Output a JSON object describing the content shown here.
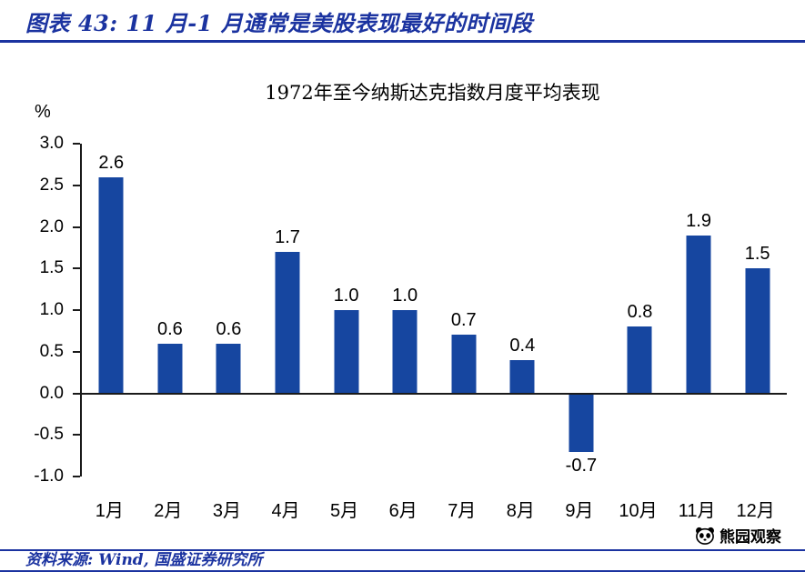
{
  "header": {
    "title": "图表 43:  11 月-1 月通常是美股表现最好的时间段"
  },
  "chart_data": {
    "type": "bar",
    "title": "1972年至今纳斯达克指数月度平均表现",
    "ylabel": "%",
    "xlabel": "",
    "categories": [
      "1月",
      "2月",
      "3月",
      "4月",
      "5月",
      "6月",
      "7月",
      "8月",
      "9月",
      "10月",
      "11月",
      "12月"
    ],
    "values": [
      2.6,
      0.6,
      0.6,
      1.7,
      1.0,
      1.0,
      0.7,
      0.4,
      -0.7,
      0.8,
      1.9,
      1.5
    ],
    "labels": [
      "2.6",
      "0.6",
      "0.6",
      "1.7",
      "1.0",
      "1.0",
      "0.7",
      "0.4",
      "-0.7",
      "0.8",
      "1.9",
      "1.5"
    ],
    "ylim": [
      -1.0,
      3.0
    ],
    "y_ticks": [
      "3.0",
      "2.5",
      "2.0",
      "1.5",
      "1.0",
      "0.5",
      "0.0",
      "-0.5",
      "-1.0"
    ],
    "grid": "off",
    "legend": "none"
  },
  "watermark": {
    "label": "熊园观察"
  },
  "footer": {
    "source": "资料来源: Wind, 国盛证券研究所"
  },
  "colors": {
    "accent": "#1b33a0",
    "bar": "#1646a0",
    "axis": "#1a1a1a",
    "label": "#000000"
  }
}
